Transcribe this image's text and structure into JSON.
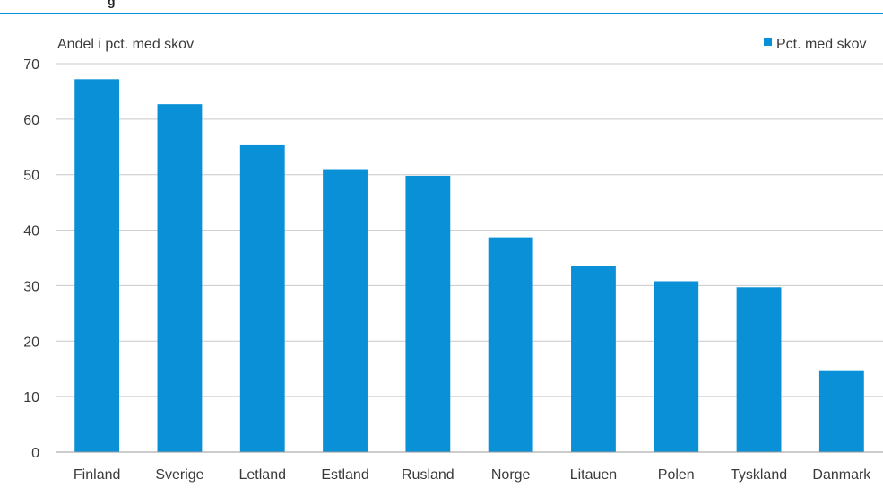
{
  "heading_fragment": "g",
  "chart_data": {
    "type": "bar",
    "title": "",
    "ylabel": "Andel i pct. med skov",
    "xlabel": "",
    "ylim": [
      0,
      70
    ],
    "yticks": [
      0,
      10,
      20,
      30,
      40,
      50,
      60,
      70
    ],
    "grid": true,
    "legend_position": "top-right",
    "categories": [
      "Finland",
      "Sverige",
      "Letland",
      "Estland",
      "Rusland",
      "Norge",
      "Litauen",
      "Polen",
      "Tyskland",
      "Danmark"
    ],
    "series": [
      {
        "name": "Pct. med skov",
        "color": "#0a90d6",
        "values": [
          67.2,
          62.7,
          55.3,
          51.0,
          49.8,
          38.7,
          33.6,
          30.8,
          29.7,
          14.6
        ]
      }
    ]
  },
  "colors": {
    "bar": "#0a90d6",
    "top_rule": "#0a90d6",
    "grid": "#c9c9c9"
  }
}
